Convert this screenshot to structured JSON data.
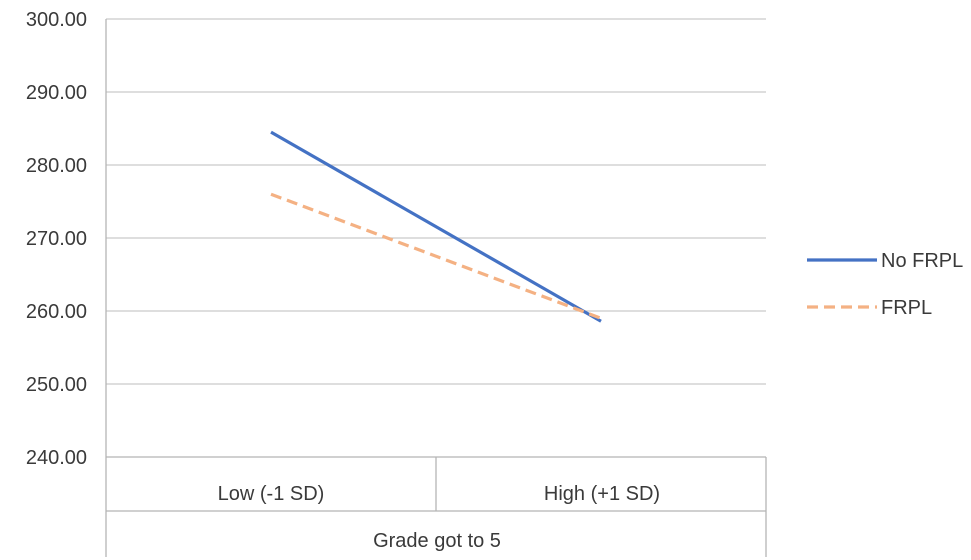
{
  "chart_data": {
    "type": "line",
    "categories": [
      "Low (-1 SD)",
      "High (+1 SD)"
    ],
    "group_label": "Grade got to 5",
    "ylim": [
      240,
      300
    ],
    "yticks": [
      "240.00",
      "250.00",
      "260.00",
      "270.00",
      "280.00",
      "290.00",
      "300.00"
    ],
    "grid": true,
    "legend_position": "right",
    "series": [
      {
        "name": "No FRPL",
        "values": [
          284.5,
          258.6
        ],
        "color": "#4472C4",
        "dash": "solid"
      },
      {
        "name": "FRPL",
        "values": [
          276.0,
          259.0
        ],
        "color": "#F4B183",
        "dash": "dashed"
      }
    ]
  }
}
